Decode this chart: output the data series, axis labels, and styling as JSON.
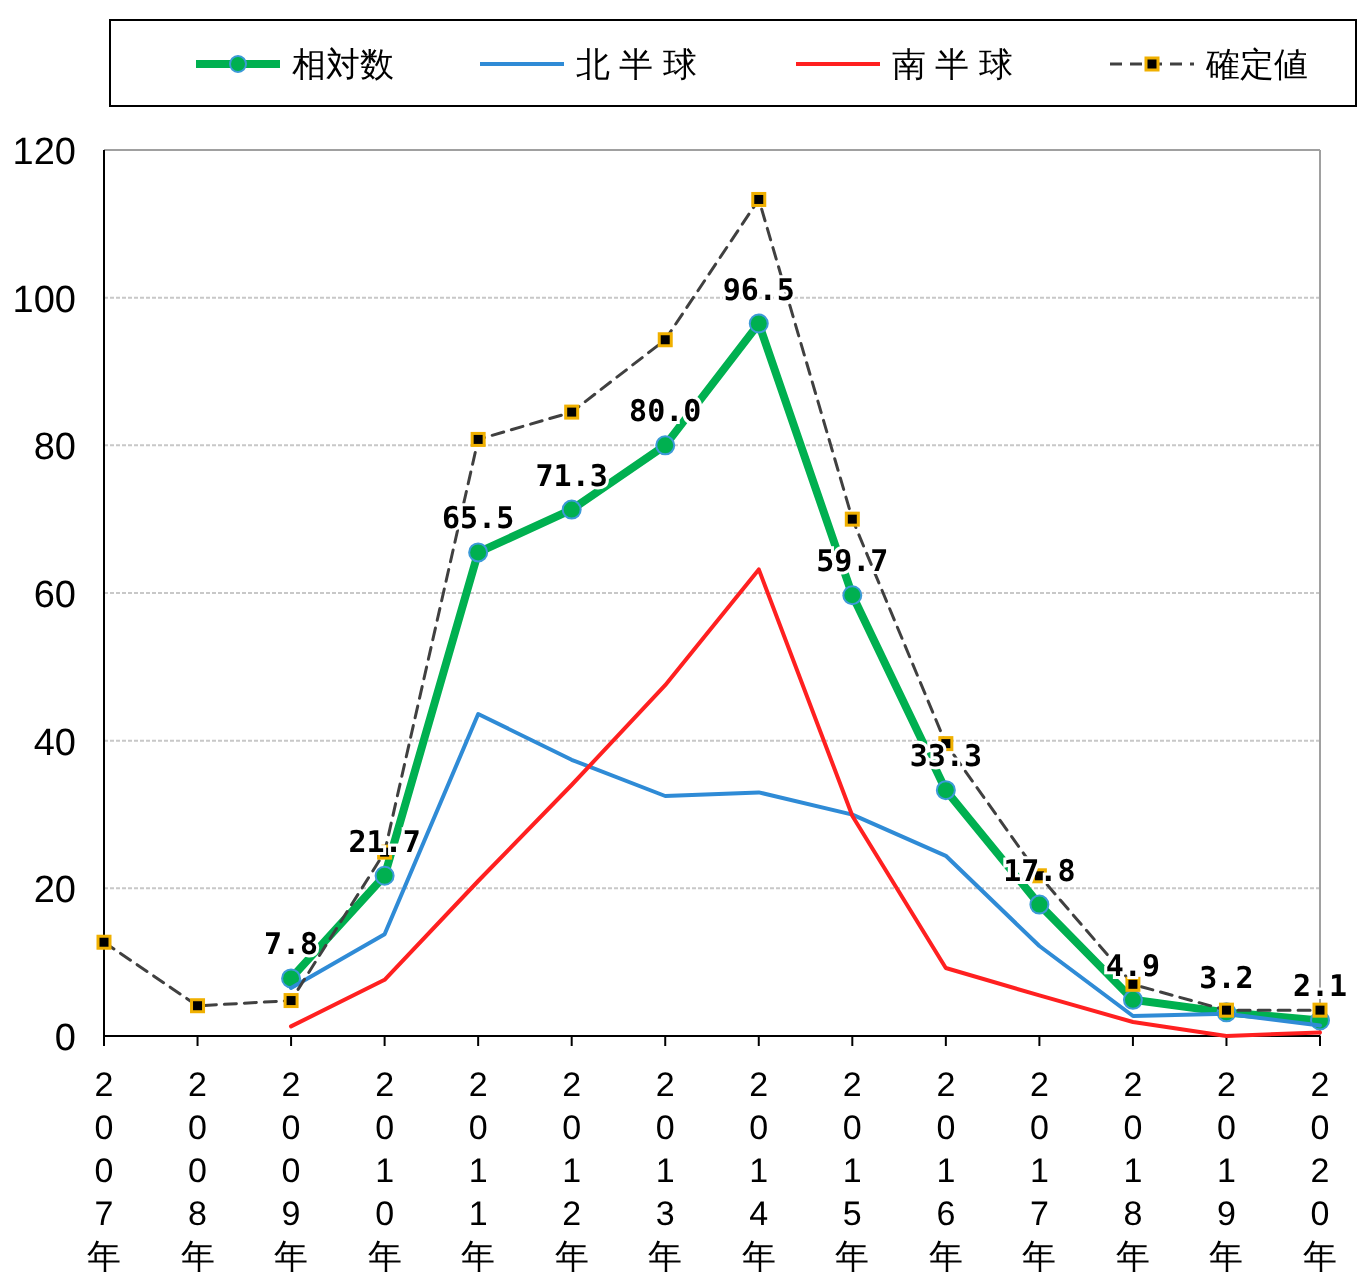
{
  "chart_data": {
    "type": "line",
    "categories": [
      "2007年",
      "2008年",
      "2009年",
      "2010年",
      "2011年",
      "2012年",
      "2013年",
      "2014年",
      "2015年",
      "2016年",
      "2017年",
      "2018年",
      "2019年",
      "2020年"
    ],
    "series": [
      {
        "name": "相対数",
        "color": "#00b050",
        "marker": "circle",
        "line_style": "solid",
        "value_labels": [
          null,
          null,
          "7.8",
          "21.7",
          "65.5",
          "71.3",
          "80.0",
          "96.5",
          "59.7",
          "33.3",
          "17.8",
          "4.9",
          "3.2",
          "2.1"
        ],
        "values": [
          null,
          null,
          7.8,
          21.7,
          65.5,
          71.3,
          80.0,
          96.5,
          59.7,
          33.3,
          17.8,
          4.9,
          3.2,
          2.1
        ]
      },
      {
        "name": "北 半 球",
        "color": "#2f8bd6",
        "marker": "none",
        "line_style": "solid",
        "values": [
          null,
          null,
          6.5,
          13.8,
          43.6,
          37.4,
          32.5,
          33,
          30,
          24.4,
          12.2,
          2.7,
          3,
          1.4
        ]
      },
      {
        "name": "南 半 球",
        "color": "#ff2020",
        "marker": "none",
        "line_style": "solid",
        "values": [
          null,
          null,
          1.3,
          7.6,
          21,
          34,
          47.5,
          63.2,
          29.8,
          9.2,
          5.5,
          1.9,
          0,
          0.5
        ]
      },
      {
        "name": "確定値",
        "color": "#404040",
        "marker": "square",
        "line_style": "dashed",
        "values": [
          12.7,
          4.1,
          4.8,
          24.9,
          80.8,
          84.5,
          94.3,
          113.3,
          70,
          39.6,
          21.7,
          7,
          3.5,
          3.5
        ]
      }
    ],
    "ylim": [
      0,
      120
    ],
    "yticks": [
      0,
      20,
      40,
      60,
      80,
      100,
      120
    ],
    "grid": "y",
    "legend": "top"
  }
}
